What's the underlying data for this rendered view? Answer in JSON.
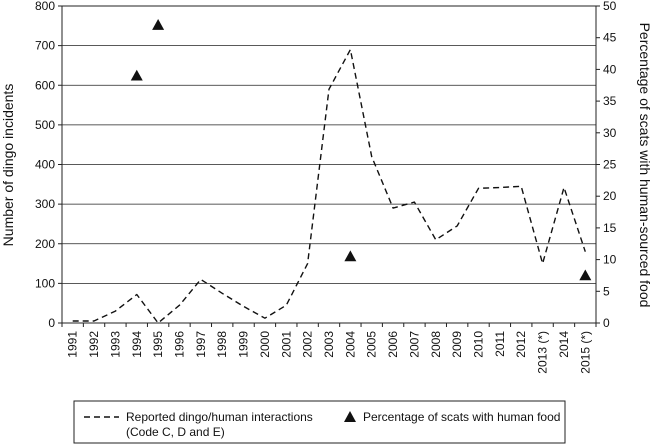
{
  "chart_data": {
    "type": "line",
    "x_categories": [
      "1991",
      "1992",
      "1993",
      "1994",
      "1995",
      "1996",
      "1997",
      "1998",
      "1999",
      "2000",
      "2001",
      "2002",
      "2003",
      "2004",
      "2005",
      "2006",
      "2007",
      "2008",
      "2009",
      "2010",
      "2011",
      "2012",
      "2013 (*)",
      "2014",
      "2015 (*)"
    ],
    "left_axis": {
      "label": "Number of dingo incidents",
      "ylim": [
        0,
        800
      ],
      "ticks": [
        0,
        100,
        200,
        300,
        400,
        500,
        600,
        700,
        800
      ]
    },
    "right_axis": {
      "label": "Percentage of scats with human-sourced food",
      "ylim": [
        0,
        50
      ],
      "ticks": [
        0,
        5,
        10,
        15,
        20,
        25,
        30,
        35,
        40,
        45,
        50
      ]
    },
    "grid": "horizontal",
    "legend_position": "bottom",
    "series": [
      {
        "name": "Reported dingo/human interactions (Code C, D and E)",
        "legend_lines": [
          "Reported dingo/human interactions",
          "(Code C, D and E)"
        ],
        "type": "line",
        "style": "dashed",
        "axis": "left",
        "color": "#111111",
        "values": [
          5,
          5,
          30,
          72,
          0,
          45,
          110,
          75,
          42,
          12,
          45,
          150,
          590,
          690,
          420,
          290,
          305,
          210,
          245,
          340,
          342,
          345,
          150,
          342,
          180
        ]
      },
      {
        "name": "Percentage of scats with human food",
        "type": "scatter",
        "marker": "triangle",
        "axis": "right",
        "color": "#111111",
        "points": [
          {
            "x": "1994",
            "y": 39
          },
          {
            "x": "1995",
            "y": 47
          },
          {
            "x": "2004",
            "y": 10.5
          },
          {
            "x": "2015 (*)",
            "y": 7.5
          }
        ]
      }
    ]
  }
}
